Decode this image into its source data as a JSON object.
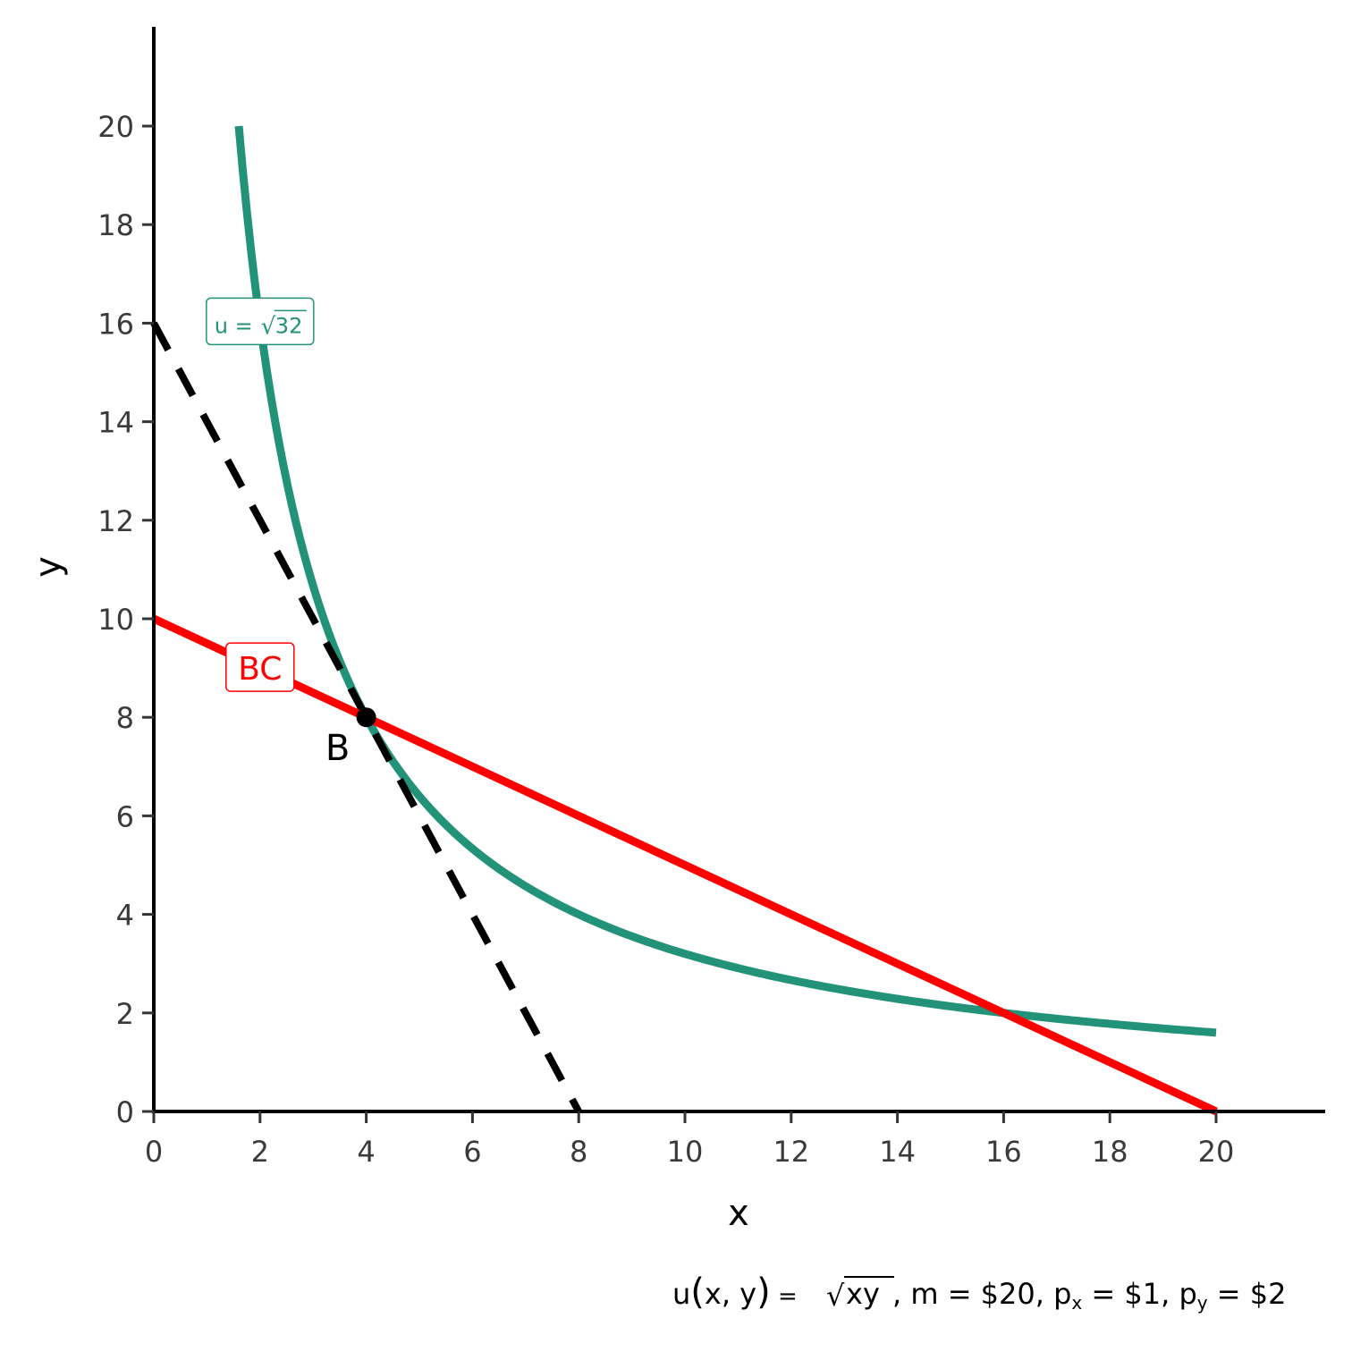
{
  "chart_data": {
    "type": "line",
    "xlabel": "x",
    "ylabel": "y",
    "xlim": [
      0,
      22
    ],
    "ylim": [
      0,
      22
    ],
    "x_ticks": [
      0,
      2,
      4,
      6,
      8,
      10,
      12,
      14,
      16,
      18,
      20
    ],
    "y_ticks": [
      0,
      2,
      4,
      6,
      8,
      10,
      12,
      14,
      16,
      18,
      20
    ],
    "grid": false,
    "colors": {
      "indifference": "#229378",
      "budget": "#ff0000",
      "tangent": "#000000",
      "point": "#000000"
    },
    "series": [
      {
        "kind": "indifference_curve",
        "formula": "y = 32 / x",
        "x_range": [
          1.6,
          20
        ],
        "label": "u = √32",
        "label_main": "u = ",
        "label_radicand": "32",
        "label_at": {
          "x": 2,
          "y": 16
        }
      },
      {
        "kind": "budget_constraint",
        "points": [
          [
            0,
            10
          ],
          [
            20,
            0
          ]
        ],
        "label": "BC",
        "label_at": {
          "x": 2,
          "y": 9
        }
      },
      {
        "kind": "tangent_line",
        "style": "dashed",
        "points": [
          [
            0,
            16
          ],
          [
            8,
            0
          ]
        ]
      }
    ],
    "points": [
      {
        "label": "B",
        "x": 4,
        "y": 8
      }
    ],
    "caption": {
      "text": "u(x, y) = √xy, m = $20, pₓ = $1, pᵧ = $2",
      "func": "u",
      "args": "x, y",
      "eq": " = ",
      "radicand": "xy",
      "rest1": ", m = $20, p",
      "sub_x": "x",
      "rest2": " = $1, p",
      "sub_y": "y",
      "rest3": " = $2"
    }
  }
}
